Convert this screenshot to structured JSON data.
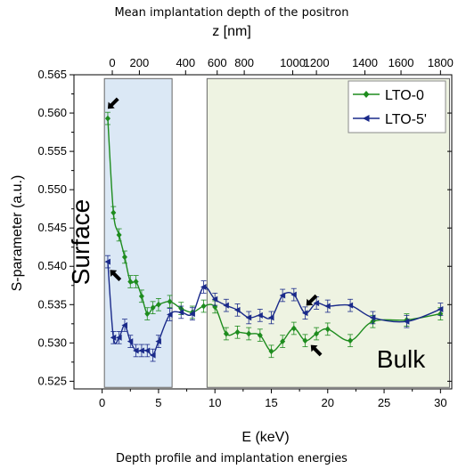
{
  "chart_data": {
    "type": "scatter",
    "title": "",
    "top_caption": "Mean implantation depth of the positron",
    "top_axis_label": "z [nm]",
    "bottom_caption": "Depth profile and implantation energies",
    "xlabel": "E (keV)",
    "ylabel": "S-parameter (a.u.)",
    "xlim": [
      -2.5,
      31
    ],
    "ylim": [
      0.524,
      0.565
    ],
    "x_ticks": [
      0,
      5,
      10,
      15,
      20,
      25,
      30
    ],
    "y_ticks": [
      0.525,
      0.53,
      0.535,
      0.54,
      0.545,
      0.55,
      0.555,
      0.56,
      0.565
    ],
    "top_ticks": [
      {
        "label": "0",
        "E": 0.9
      },
      {
        "label": "200",
        "E": 3.3
      },
      {
        "label": "400",
        "E": 7.4
      },
      {
        "label": "600",
        "E": 10.2
      },
      {
        "label": "800",
        "E": 12.6
      },
      {
        "label": "1000",
        "E": 16.9
      },
      {
        "label": "1200",
        "E": 19.0
      },
      {
        "label": "1400",
        "E": 23.3
      },
      {
        "label": "1600",
        "E": 26.5
      },
      {
        "label": "1800",
        "E": 30.0
      }
    ],
    "regions": [
      {
        "name": "Surface",
        "x": [
          0.2,
          6.2
        ],
        "y": [
          0.5242,
          0.5645
        ],
        "color": "#dbe8f5"
      },
      {
        "name": "Bulk",
        "x": [
          9.3,
          30.8
        ],
        "y": [
          0.5242,
          0.5645
        ],
        "color": "#eef3e2"
      }
    ],
    "region_labels": [
      "Surface",
      "Bulk"
    ],
    "legend_position": "top-right",
    "series": [
      {
        "name": "LTO-0",
        "color": "#1e8c1e",
        "marker": "diamond",
        "x": [
          0.5,
          1.0,
          1.5,
          2.0,
          2.5,
          3.0,
          3.5,
          4.0,
          4.5,
          5.0,
          6.0,
          7.0,
          8.0,
          9.0,
          10.0,
          11.0,
          12.0,
          13.0,
          14.0,
          15.0,
          16.0,
          17.0,
          18.0,
          19.0,
          20.0,
          22.0,
          24.0,
          27.0,
          30.0
        ],
        "y": [
          0.5593,
          0.547,
          0.5441,
          0.5412,
          0.538,
          0.538,
          0.5361,
          0.5338,
          0.5346,
          0.535,
          0.5354,
          0.5345,
          0.534,
          0.5348,
          0.5347,
          0.5312,
          0.5314,
          0.5312,
          0.531,
          0.5289,
          0.5302,
          0.5319,
          0.5303,
          0.5312,
          0.5318,
          0.5303,
          0.5328,
          0.533,
          0.5338
        ],
        "err": 0.0008
      },
      {
        "name": "LTO-5'",
        "color": "#1a2a8a",
        "marker": "left-triangle",
        "x": [
          0.5,
          1.0,
          1.5,
          2.0,
          2.5,
          3.0,
          3.5,
          4.0,
          4.5,
          5.0,
          6.0,
          7.0,
          8.0,
          9.0,
          10.0,
          11.0,
          12.0,
          13.0,
          14.0,
          15.0,
          16.0,
          17.0,
          18.0,
          19.0,
          20.0,
          22.0,
          24.0,
          27.0,
          30.0
        ],
        "y": [
          0.5406,
          0.5307,
          0.5307,
          0.5323,
          0.5302,
          0.529,
          0.529,
          0.529,
          0.5284,
          0.5302,
          0.5337,
          0.534,
          0.5338,
          0.5373,
          0.5357,
          0.5349,
          0.5343,
          0.5333,
          0.5336,
          0.5333,
          0.5362,
          0.5363,
          0.5339,
          0.5352,
          0.5348,
          0.5349,
          0.5333,
          0.5328,
          0.5344
        ],
        "err": 0.0008
      }
    ],
    "annotations": [
      {
        "type": "arrow",
        "x": 1.0,
        "y": 0.5613,
        "direction": "down-left"
      },
      {
        "type": "arrow",
        "x": 1.2,
        "y": 0.5388,
        "direction": "up-left"
      },
      {
        "type": "arrow",
        "x": 18.6,
        "y": 0.5356,
        "direction": "down-left"
      },
      {
        "type": "arrow",
        "x": 19.0,
        "y": 0.529,
        "direction": "up-left"
      }
    ]
  }
}
